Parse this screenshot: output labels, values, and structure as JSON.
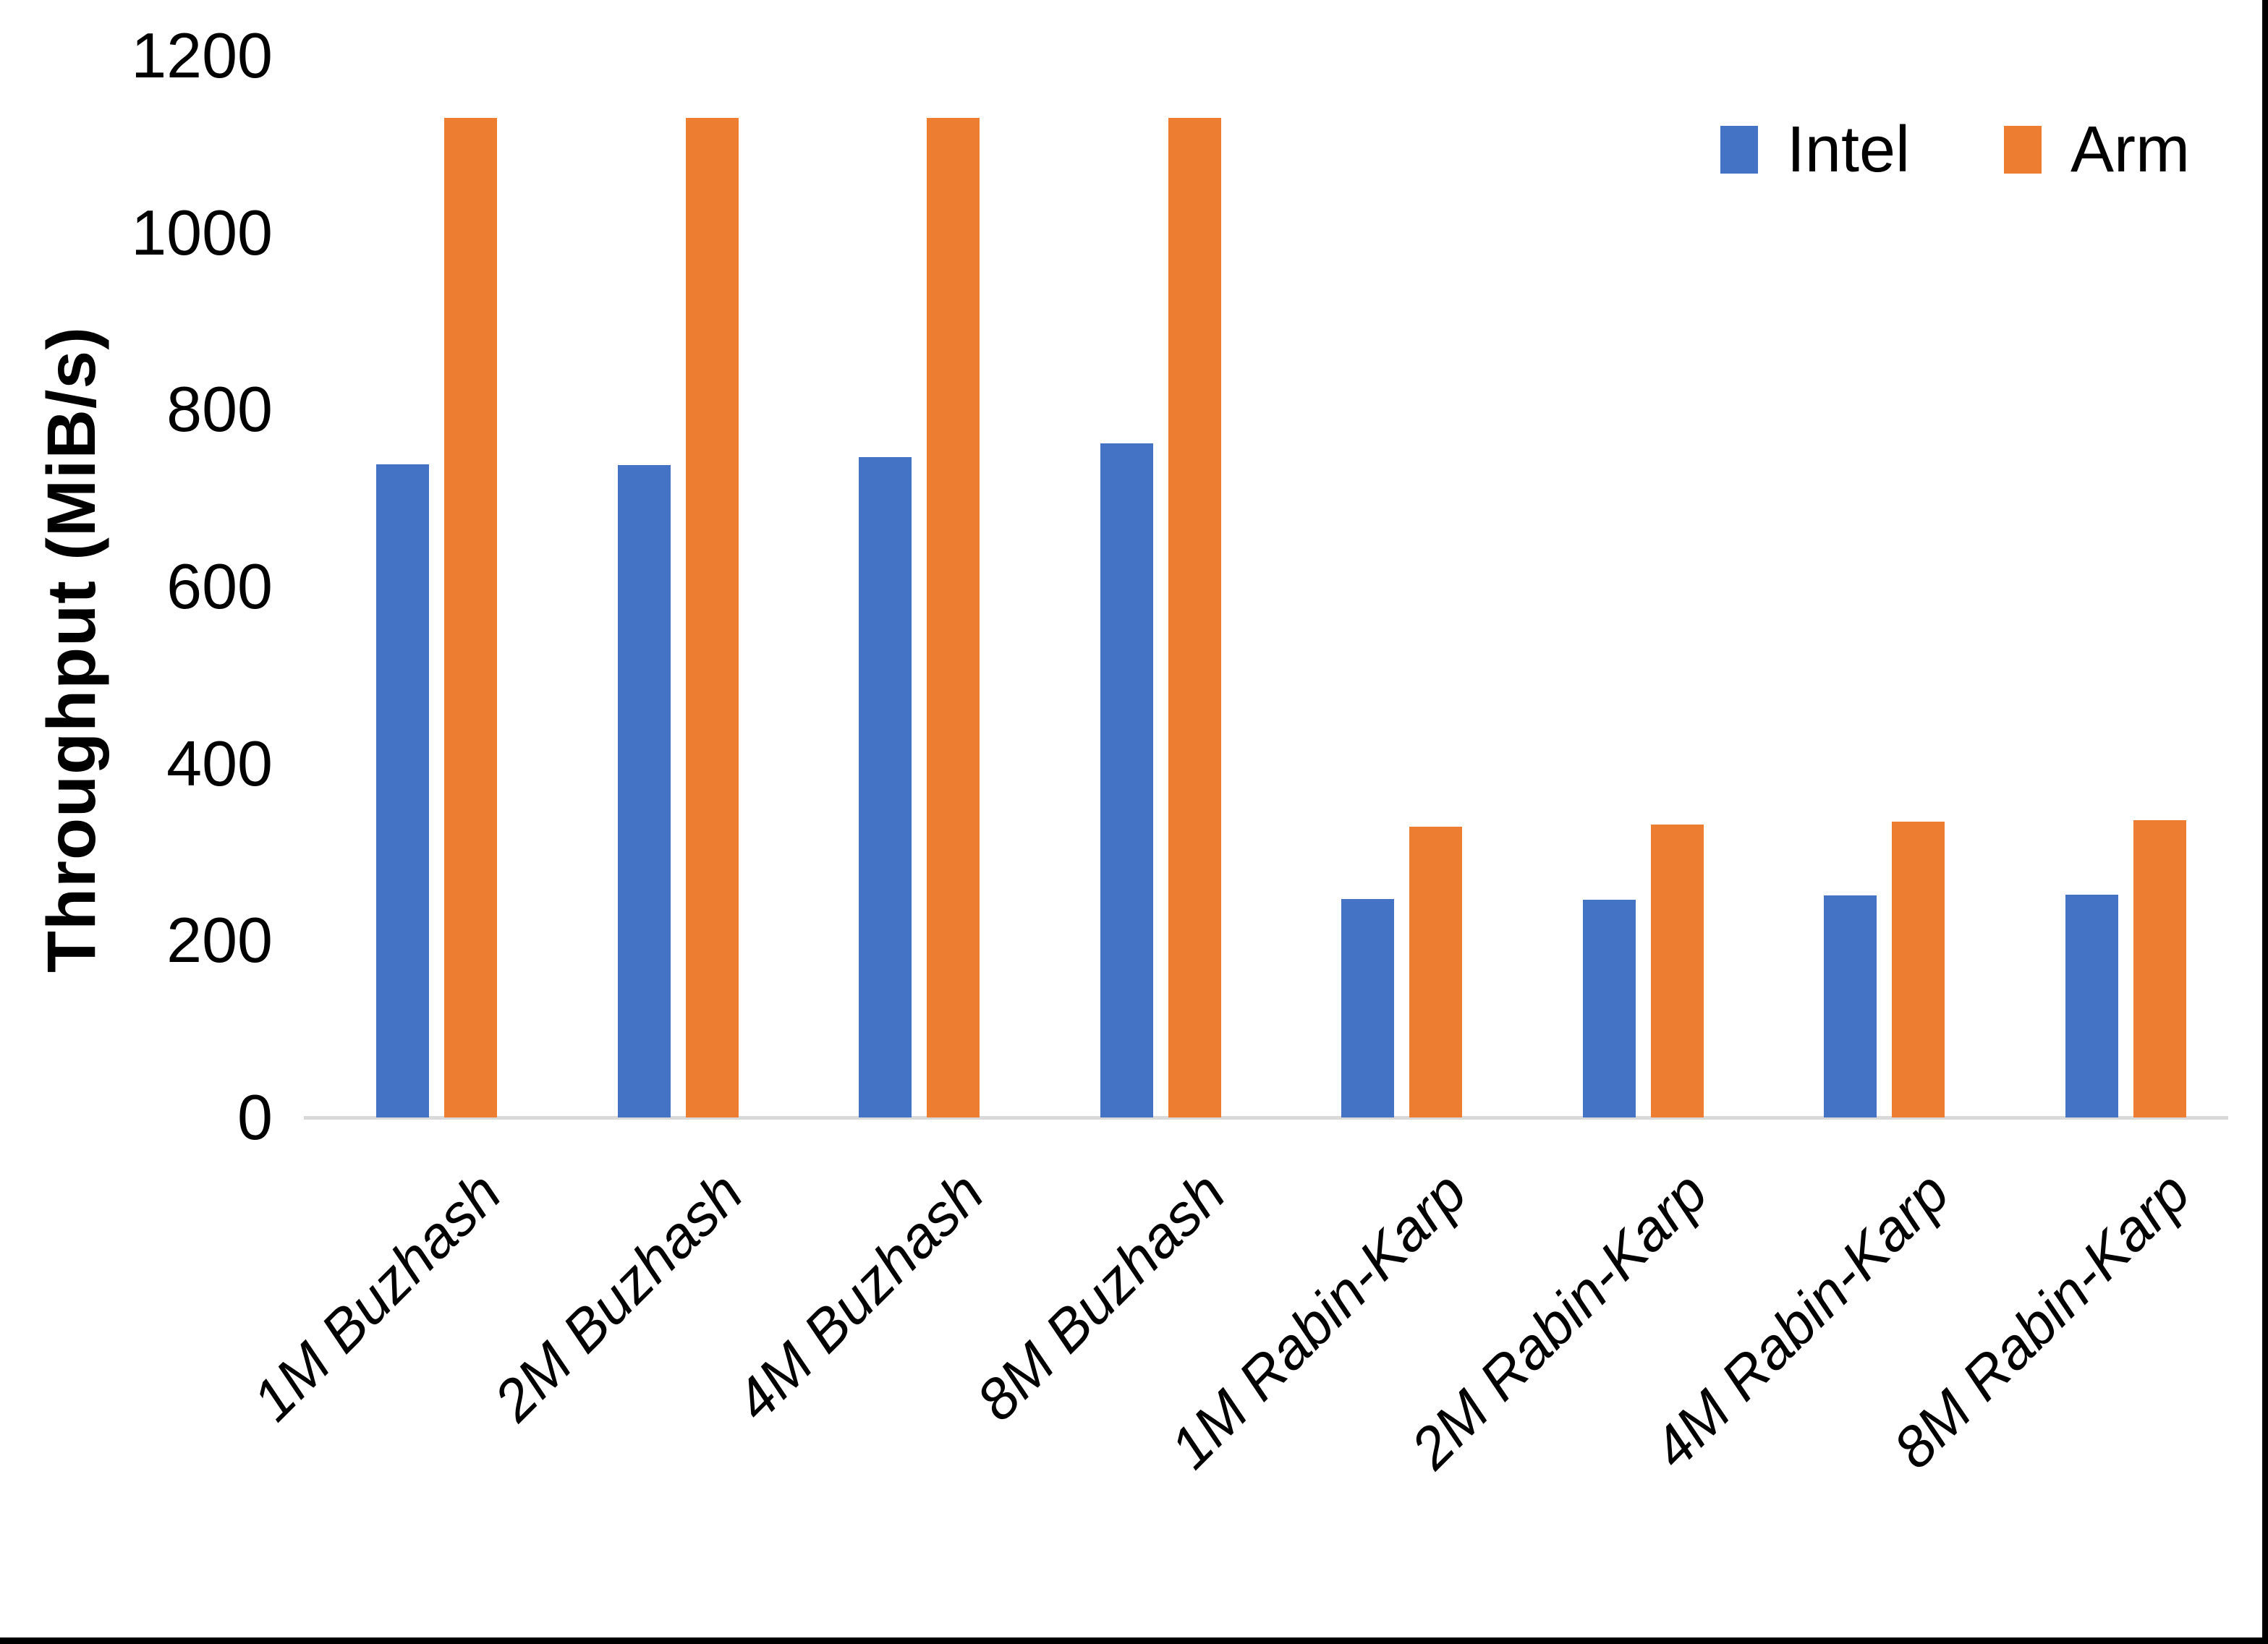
{
  "chart_data": {
    "type": "bar",
    "title": "",
    "xlabel": "",
    "ylabel": "Throughput (MiB/s)",
    "ylim": [
      0,
      1200
    ],
    "yticks": [
      0,
      200,
      400,
      600,
      800,
      1000,
      1200
    ],
    "grid": false,
    "legend_position": "top-right",
    "axis_line_color": "#d9d9d9",
    "categories": [
      "1M Buzhash",
      "2M Buzhash",
      "4M Buzhash",
      "8M Buzhash",
      "1M Rabin-Karp",
      "2M Rabin-Karp",
      "4M Rabin-Karp",
      "8M Rabin-Karp"
    ],
    "series": [
      {
        "name": "Intel",
        "color": "#4472C4",
        "values": [
          738,
          737,
          746,
          762,
          247,
          246,
          251,
          252
        ]
      },
      {
        "name": "Arm",
        "color": "#ED7D31",
        "values": [
          1130,
          1130,
          1130,
          1130,
          329,
          331,
          334,
          336
        ]
      }
    ]
  }
}
